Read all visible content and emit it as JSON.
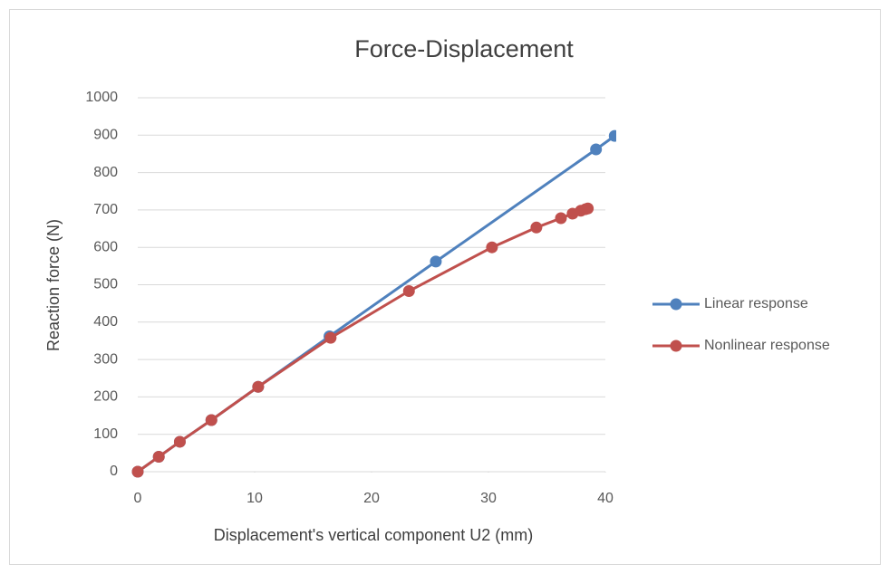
{
  "chart_data": {
    "type": "line",
    "title": "Force-Displacement",
    "xlabel": "Displacement's vertical component U2 (mm)",
    "ylabel": "Reaction force (N)",
    "xlim": [
      0,
      40
    ],
    "xticks": [
      0,
      10,
      20,
      30,
      40
    ],
    "ylim": [
      0,
      1000
    ],
    "yticks": [
      0,
      100,
      200,
      300,
      400,
      500,
      600,
      700,
      800,
      900,
      1000
    ],
    "grid": true,
    "legend": "right",
    "series": [
      {
        "name": "Linear response",
        "color": "#4f81bd",
        "x": [
          0,
          1.8,
          3.6,
          6.3,
          10.3,
          16.4,
          25.5,
          39.2,
          40.8
        ],
        "values": [
          0,
          40,
          80,
          138,
          227,
          362,
          562,
          862,
          898
        ]
      },
      {
        "name": "Nonlinear response",
        "color": "#c0504d",
        "x": [
          0,
          1.8,
          3.6,
          6.3,
          10.3,
          16.5,
          23.2,
          30.3,
          34.1,
          36.2,
          37.2,
          37.9,
          38.3,
          38.5
        ],
        "values": [
          0,
          40,
          80,
          138,
          227,
          358,
          483,
          600,
          653,
          678,
          690,
          698,
          702,
          704
        ]
      }
    ]
  }
}
